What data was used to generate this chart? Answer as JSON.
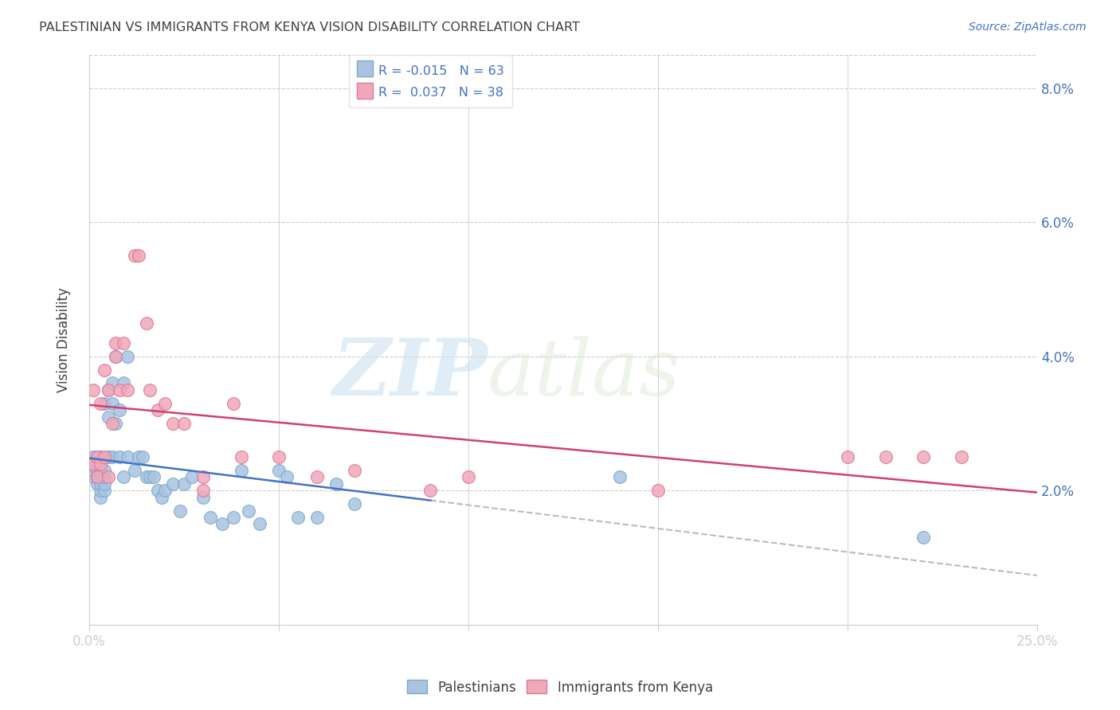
{
  "title": "PALESTINIAN VS IMMIGRANTS FROM KENYA VISION DISABILITY CORRELATION CHART",
  "source": "Source: ZipAtlas.com",
  "ylabel": "Vision Disability",
  "xlim": [
    0.0,
    0.25
  ],
  "ylim": [
    0.0,
    0.085
  ],
  "xticks": [
    0.0,
    0.05,
    0.1,
    0.15,
    0.2,
    0.25
  ],
  "yticks": [
    0.02,
    0.04,
    0.06,
    0.08
  ],
  "ytick_labels": [
    "2.0%",
    "4.0%",
    "6.0%",
    "8.0%"
  ],
  "blue_color": "#aac4e0",
  "pink_color": "#f0a8ba",
  "blue_edge": "#7aaad0",
  "pink_edge": "#e07898",
  "line_blue": "#4472c4",
  "line_pink": "#d04070",
  "legend_text_color": "#4472c4",
  "r_blue": -0.015,
  "n_blue": 63,
  "r_pink": 0.037,
  "n_pink": 38,
  "blue_line_cutoff": 0.09,
  "blue_x": [
    0.001,
    0.001,
    0.001,
    0.001,
    0.002,
    0.002,
    0.002,
    0.002,
    0.002,
    0.003,
    0.003,
    0.003,
    0.003,
    0.003,
    0.003,
    0.003,
    0.004,
    0.004,
    0.004,
    0.004,
    0.004,
    0.005,
    0.005,
    0.005,
    0.006,
    0.006,
    0.006,
    0.007,
    0.007,
    0.008,
    0.008,
    0.009,
    0.009,
    0.01,
    0.01,
    0.012,
    0.013,
    0.014,
    0.015,
    0.016,
    0.017,
    0.018,
    0.019,
    0.02,
    0.022,
    0.024,
    0.025,
    0.027,
    0.03,
    0.032,
    0.035,
    0.038,
    0.04,
    0.042,
    0.045,
    0.05,
    0.052,
    0.055,
    0.06,
    0.065,
    0.07,
    0.14,
    0.22
  ],
  "blue_y": [
    0.022,
    0.023,
    0.024,
    0.025,
    0.021,
    0.022,
    0.023,
    0.024,
    0.025,
    0.019,
    0.02,
    0.021,
    0.022,
    0.023,
    0.024,
    0.025,
    0.02,
    0.021,
    0.022,
    0.023,
    0.033,
    0.025,
    0.031,
    0.035,
    0.025,
    0.033,
    0.036,
    0.03,
    0.04,
    0.025,
    0.032,
    0.022,
    0.036,
    0.025,
    0.04,
    0.023,
    0.025,
    0.025,
    0.022,
    0.022,
    0.022,
    0.02,
    0.019,
    0.02,
    0.021,
    0.017,
    0.021,
    0.022,
    0.019,
    0.016,
    0.015,
    0.016,
    0.023,
    0.017,
    0.015,
    0.023,
    0.022,
    0.016,
    0.016,
    0.021,
    0.018,
    0.022,
    0.013
  ],
  "pink_x": [
    0.001,
    0.001,
    0.002,
    0.002,
    0.003,
    0.003,
    0.004,
    0.004,
    0.005,
    0.005,
    0.006,
    0.007,
    0.007,
    0.008,
    0.009,
    0.01,
    0.012,
    0.013,
    0.015,
    0.016,
    0.018,
    0.02,
    0.022,
    0.025,
    0.03,
    0.038,
    0.22,
    0.23,
    0.2,
    0.21,
    0.15,
    0.1,
    0.09,
    0.07,
    0.06,
    0.05,
    0.04,
    0.03
  ],
  "pink_y": [
    0.024,
    0.035,
    0.022,
    0.025,
    0.024,
    0.033,
    0.025,
    0.038,
    0.022,
    0.035,
    0.03,
    0.04,
    0.042,
    0.035,
    0.042,
    0.035,
    0.055,
    0.055,
    0.045,
    0.035,
    0.032,
    0.033,
    0.03,
    0.03,
    0.022,
    0.033,
    0.025,
    0.025,
    0.025,
    0.025,
    0.02,
    0.022,
    0.02,
    0.023,
    0.022,
    0.025,
    0.025,
    0.02
  ],
  "watermark_zip": "ZIP",
  "watermark_atlas": "atlas",
  "background_color": "#ffffff",
  "grid_color": "#cccccc",
  "axis_color": "#4472c4",
  "title_color": "#404040"
}
